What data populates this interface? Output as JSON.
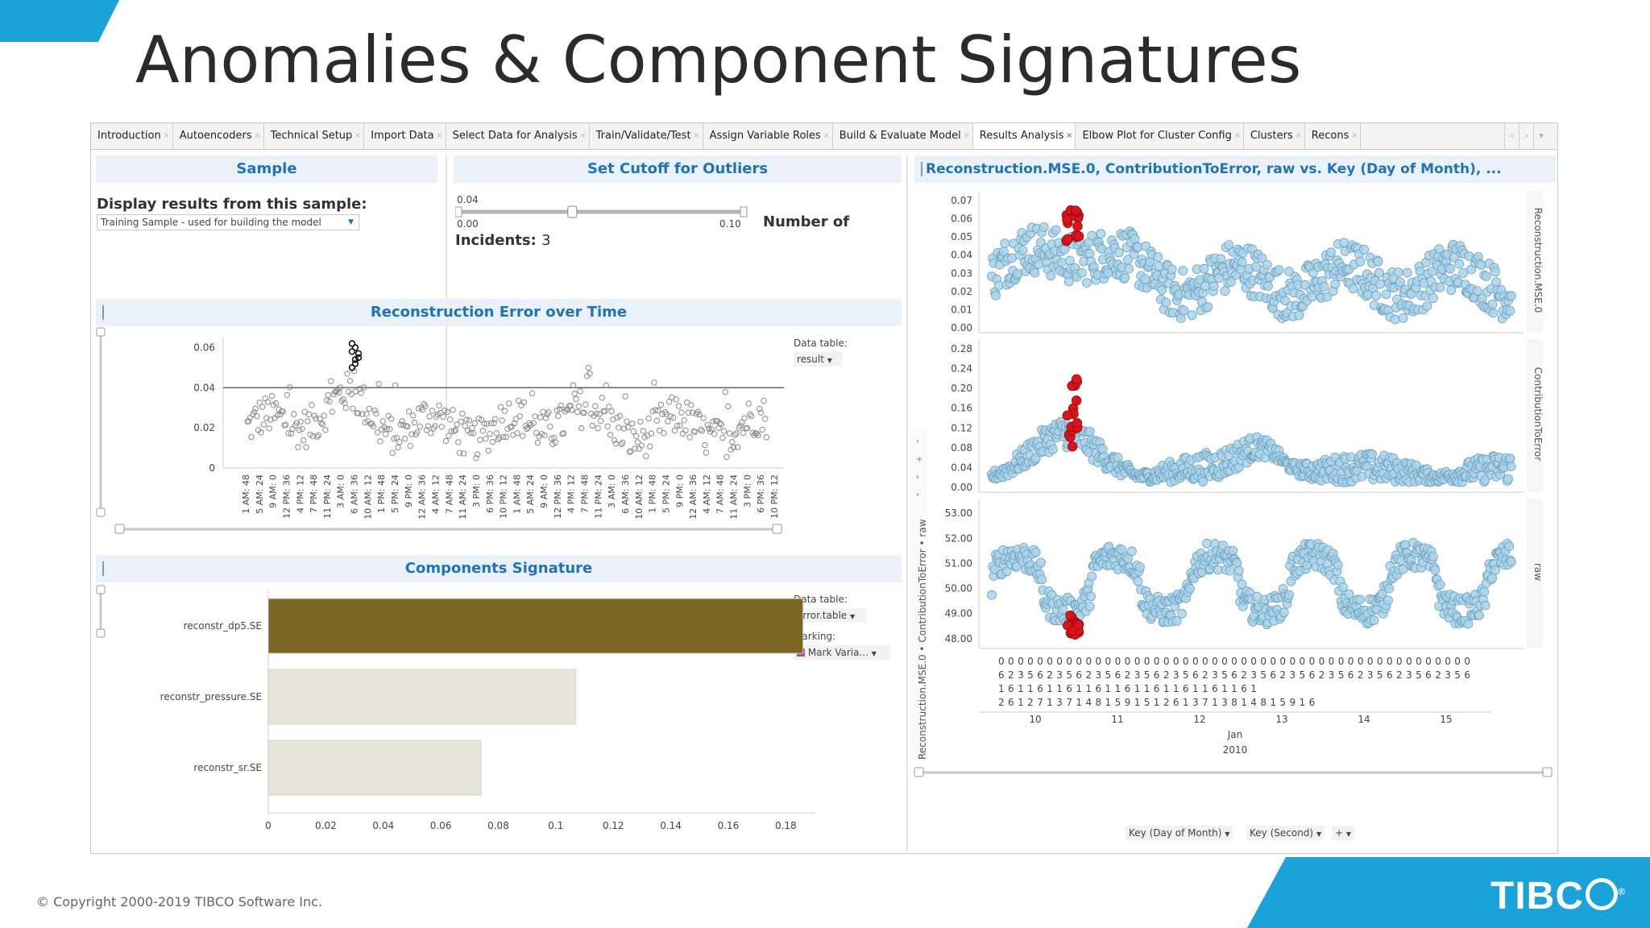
{
  "slide": {
    "title": "Anomalies & Component Signatures",
    "copyright": "© Copyright 2000-2019 TIBCO Software Inc.",
    "logo": "TIBC",
    "logo_mark": "®",
    "accent_color": "#1aa3d8"
  },
  "tabs": [
    {
      "label": "Introduction"
    },
    {
      "label": "Autoencoders"
    },
    {
      "label": "Technical Setup"
    },
    {
      "label": "Import Data"
    },
    {
      "label": "Select Data for Analysis"
    },
    {
      "label": "Train/Validate/Test"
    },
    {
      "label": "Assign Variable Roles"
    },
    {
      "label": "Build & Evaluate Model"
    },
    {
      "label": "Results Analysis",
      "active": true
    },
    {
      "label": "Elbow Plot for Cluster Config"
    },
    {
      "label": "Clusters"
    },
    {
      "label": "Recons"
    }
  ],
  "tab_close_glyph": "×",
  "sample_panel": {
    "title": "Sample",
    "label": "Display results from this sample:",
    "selected": "Training Sample - used for building the model"
  },
  "cutoff_panel": {
    "title": "Set Cutoff for Outliers",
    "slider_value": "0.04",
    "slider_min": "0.00",
    "slider_max": "0.10",
    "slider_position": 0.4,
    "incidents_label": "Number of",
    "incidents_label2": "Incidents:",
    "incidents_value": "3"
  },
  "recon_panel": {
    "title": "Reconstruction Error over Time",
    "data_table_label": "Data table:",
    "data_table_value": "result",
    "threshold": 0.04,
    "yticks": [
      "0.06",
      "0.04",
      "0.02",
      "0"
    ],
    "xticks": [
      "1 AM: 48",
      "5 AM: 24",
      "9 AM: 0",
      "12 PM: 36",
      "4 PM: 12",
      "7 PM: 48",
      "11 PM: 24",
      "3 AM: 0",
      "6 AM: 36",
      "10 AM: 12",
      "1 PM: 48",
      "5 PM: 24",
      "9 PM: 0",
      "12 AM: 36",
      "4 AM: 12",
      "7 AM: 48",
      "11 AM: 24",
      "3 PM: 0",
      "6 PM: 36",
      "10 PM: 12",
      "1 AM: 48",
      "5 AM: 24",
      "9 AM: 0",
      "12 PM: 36",
      "4 PM: 12",
      "7 PM: 48",
      "11 PM: 24",
      "3 AM: 0",
      "6 AM: 36",
      "10 AM: 12",
      "1 PM: 48",
      "5 PM: 24",
      "9 PM: 0",
      "12 AM: 36",
      "4 AM: 12",
      "7 AM: 48",
      "11 AM: 24",
      "3 PM: 0",
      "6 PM: 36",
      "10 PM: 12"
    ]
  },
  "components_panel": {
    "title": "Components Signature",
    "data_table_label": "Data table:",
    "data_table_value": "error.table",
    "marking_label": "Marking:",
    "marking_value": "Mark Varia...",
    "marking_color": "#b04aa6"
  },
  "right_panel": {
    "title": "Reconstruction.MSE.0, ContributionToError, raw vs. Key (Day of Month), ...",
    "left_axis_label": "Reconstruction.MSE.0 • ContributionToError • raw",
    "mse_label": "Reconstruction.MSE.0",
    "cte_label": "ContributionToError",
    "raw_label": "raw",
    "mse_ticks": [
      "0.07",
      "0.06",
      "0.05",
      "0.04",
      "0.03",
      "0.02",
      "0.01",
      "0.00"
    ],
    "cte_ticks": [
      "0.28",
      "0.24",
      "0.20",
      "0.16",
      "0.12",
      "0.08",
      "0.04",
      "0.00"
    ],
    "raw_ticks": [
      "53.00",
      "52.00",
      "51.00",
      "50.00",
      "49.00",
      "48.00"
    ],
    "x_row1": "0 0 0 0 0 0 0 0 0 0 0 0 0 0 0 0 0 0 0 0 0 0 0 0 0 0 0 0 0 0 0 0 0 0 0 0 0 0 0 0 0 0 0 0 0 0 0 0 0",
    "x_row2": "6 2 3 5 6 2 3 5 6 2 3 5 6 2 3 5 6 2 3 5 6 2 3 5 6 2 3 5 6 2 3 5 6 2 3 5 6 2 3 5 6 2 3 5 6 2 3 5 6",
    "x_row3": "1 6 1   1 6 1   1 6 1   1 6 1   1 6 1   1 6 1   1 6 1   1 6 1   1 6 1",
    "x_row4": "2 6 1 2 7 1 3 7 1 4 8 1 5 9 1 5 1 2 6 1 3 7 1 3 8 1 4 8 1 5 9 1 6",
    "days": [
      "10",
      "11",
      "12",
      "13",
      "14",
      "15"
    ],
    "month": "Jan",
    "year": "2010",
    "axis_selector_1": "Key (Day of Month)",
    "axis_selector_2": "Key (Second)",
    "axis_selector_add": "+"
  },
  "chart_data": [
    {
      "type": "scatter",
      "title": "Reconstruction Error over Time",
      "ylim": [
        0,
        0.065
      ],
      "threshold": 0.04,
      "outliers_highlighted": 3
    },
    {
      "type": "bar",
      "orientation": "horizontal",
      "title": "Components Signature",
      "categories": [
        "reconstr_dp5.SE",
        "reconstr_pressure.SE",
        "reconstr_sr.SE"
      ],
      "values": [
        0.186,
        0.107,
        0.074
      ],
      "colors": [
        "#7a6522",
        "#e5e5d8",
        "#e5e5d8"
      ],
      "xlim": [
        0,
        0.19
      ],
      "xticks": [
        "0",
        "0.02",
        "0.04",
        "0.06",
        "0.08",
        "0.1",
        "0.12",
        "0.14",
        "0.16",
        "0.18"
      ]
    },
    {
      "type": "scatter",
      "title": "Reconstruction.MSE.0, ContributionToError, raw vs. Key (Day of Month), ...",
      "panels": [
        {
          "name": "Reconstruction.MSE.0",
          "ylim": [
            0,
            0.07
          ]
        },
        {
          "name": "ContributionToError",
          "ylim": [
            0,
            0.28
          ]
        },
        {
          "name": "raw",
          "ylim": [
            48,
            53
          ]
        }
      ],
      "point_color": "#a9d3ea",
      "highlight_color": "#d8151b"
    }
  ]
}
